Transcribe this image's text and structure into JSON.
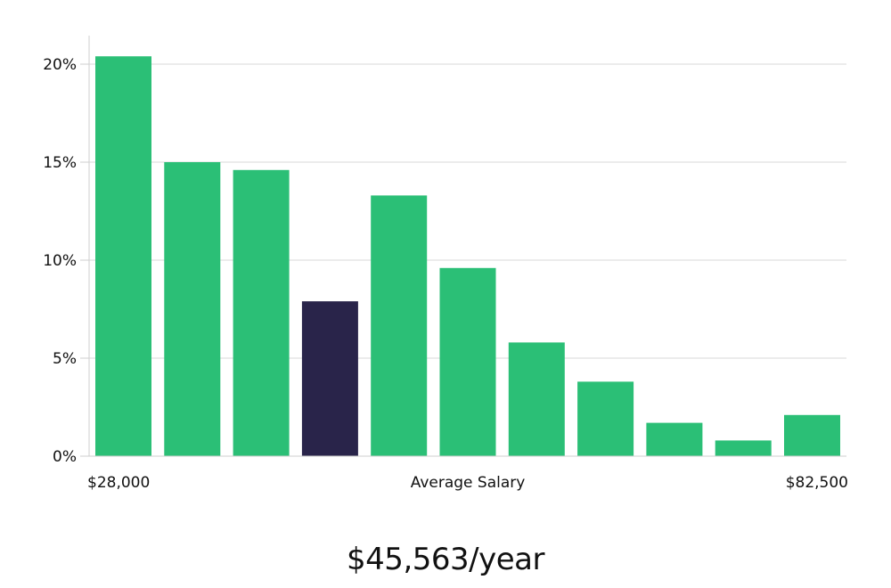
{
  "headline": "$45,563/year",
  "chart_data": {
    "type": "bar",
    "categories": [
      "1",
      "2",
      "3",
      "4",
      "5",
      "6",
      "7",
      "8",
      "9",
      "10",
      "11"
    ],
    "values": [
      20.4,
      15.0,
      14.6,
      7.9,
      13.3,
      9.6,
      5.8,
      3.8,
      1.7,
      0.8,
      2.1
    ],
    "highlight_index": 3,
    "ylim": [
      0,
      21.5
    ],
    "yticks": [
      0,
      5,
      10,
      15,
      20
    ],
    "ytick_labels": [
      "0%",
      "5%",
      "10%",
      "15%",
      "20%"
    ],
    "x_start_label": "$28,000",
    "x_center_label": "Average Salary",
    "x_end_label": "$82,500",
    "grid": true,
    "colors": {
      "bar": "#2bbf76",
      "highlight": "#29244a"
    }
  }
}
